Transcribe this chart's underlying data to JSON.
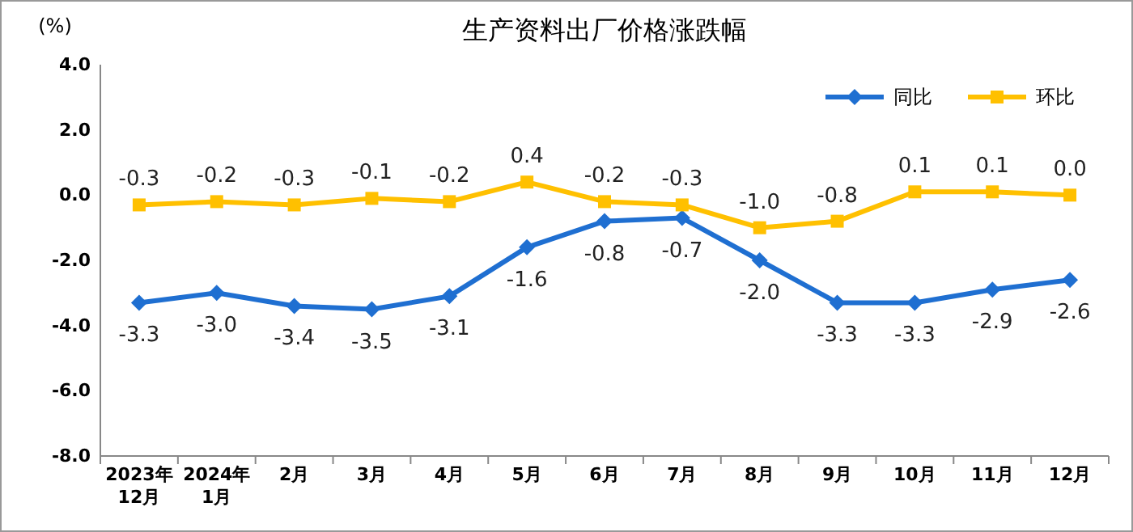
{
  "chart_data": {
    "type": "line",
    "title": "生产资料出厂价格涨跌幅",
    "ylabel": "(%)",
    "categories": [
      "2023年\n12月",
      "2024年\n1月",
      "2月",
      "3月",
      "4月",
      "5月",
      "6月",
      "7月",
      "8月",
      "9月",
      "10月",
      "11月",
      "12月"
    ],
    "series": [
      {
        "name": "同比",
        "color": "#1f6fd1",
        "marker": "diamond",
        "values": [
          -3.3,
          -3.0,
          -3.4,
          -3.5,
          -3.1,
          -1.6,
          -0.8,
          -0.7,
          -2.0,
          -3.3,
          -3.3,
          -2.9,
          -2.6
        ],
        "value_labels": [
          "-3.3",
          "-3.0",
          "-3.4",
          "-3.5",
          "-3.1",
          "-1.6",
          "-0.8",
          "-0.7",
          "-2.0",
          "-3.3",
          "-3.3",
          "-2.9",
          "-2.6"
        ]
      },
      {
        "name": "环比",
        "color": "#ffc000",
        "marker": "square",
        "values": [
          -0.3,
          -0.2,
          -0.3,
          -0.1,
          -0.2,
          0.4,
          -0.2,
          -0.3,
          -1.0,
          -0.8,
          0.1,
          0.1,
          0.0
        ],
        "value_labels": [
          "-0.3",
          "-0.2",
          "-0.3",
          "-0.1",
          "-0.2",
          "0.4",
          "-0.2",
          "-0.3",
          "-1.0",
          "-0.8",
          "0.1",
          "0.1",
          "0.0"
        ]
      }
    ],
    "ylim": [
      -8.0,
      4.0
    ],
    "yticks": [
      {
        "value": -8,
        "label": "-8.0"
      },
      {
        "value": -6,
        "label": "-6.0"
      },
      {
        "value": -4,
        "label": "-4.0"
      },
      {
        "value": -2,
        "label": "-2.0"
      },
      {
        "value": 0,
        "label": "0.0"
      },
      {
        "value": 2,
        "label": "2.0"
      },
      {
        "value": 4,
        "label": "4.0"
      }
    ],
    "legend": "top right",
    "grid": false
  }
}
